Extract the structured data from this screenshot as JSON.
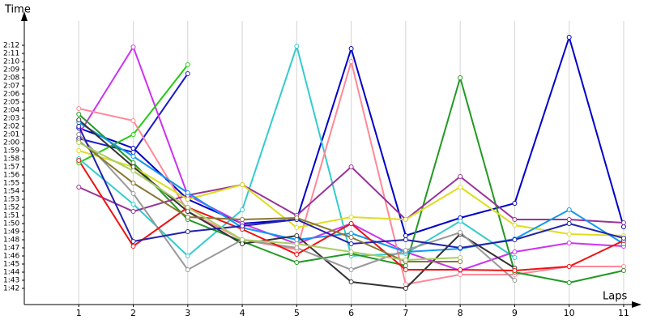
{
  "chart_data": {
    "type": "line",
    "x_label": "Laps",
    "y_label": "Time",
    "xlim": [
      0,
      11.2
    ],
    "ylim": [
      100,
      135
    ],
    "xticks": [
      1,
      2,
      3,
      4,
      5,
      6,
      7,
      8,
      9,
      10,
      11
    ],
    "yticks": [
      {
        "value": 102,
        "label": "1:42"
      },
      {
        "value": 103,
        "label": "1:43"
      },
      {
        "value": 104,
        "label": "1:44"
      },
      {
        "value": 105,
        "label": "1:45"
      },
      {
        "value": 106,
        "label": "1:46"
      },
      {
        "value": 107,
        "label": "1:47"
      },
      {
        "value": 108,
        "label": "1:48"
      },
      {
        "value": 109,
        "label": "1:49"
      },
      {
        "value": 110,
        "label": "1:50"
      },
      {
        "value": 111,
        "label": "1:51"
      },
      {
        "value": 112,
        "label": "1:52"
      },
      {
        "value": 113,
        "label": "1:53"
      },
      {
        "value": 114,
        "label": "1:54"
      },
      {
        "value": 115,
        "label": "1:55"
      },
      {
        "value": 116,
        "label": "1:56"
      },
      {
        "value": 117,
        "label": "1:57"
      },
      {
        "value": 118,
        "label": "1:58"
      },
      {
        "value": 119,
        "label": "1:59"
      },
      {
        "value": 120,
        "label": "2:00"
      },
      {
        "value": 121,
        "label": "2:01"
      },
      {
        "value": 122,
        "label": "2:02"
      },
      {
        "value": 123,
        "label": "2:03"
      },
      {
        "value": 124,
        "label": "2:04"
      },
      {
        "value": 125,
        "label": "2:05"
      },
      {
        "value": 126,
        "label": "2:06"
      },
      {
        "value": 127,
        "label": "2:07"
      },
      {
        "value": 128,
        "label": "2:08"
      },
      {
        "value": 129,
        "label": "2:09"
      },
      {
        "value": 130,
        "label": "2:10"
      },
      {
        "value": 131,
        "label": "2:11"
      },
      {
        "value": 132,
        "label": "2:12"
      }
    ],
    "grid": "x",
    "x": [
      1,
      2,
      3,
      4,
      5,
      6,
      7,
      8,
      9,
      10,
      11
    ],
    "series": [
      {
        "color": "#0000c8",
        "values": [
          121.8,
          119.3,
          113,
          110,
          110.5,
          131.6,
          108.5,
          110.7,
          112.5,
          133,
          109.6
        ]
      },
      {
        "color": "#1a1ad0",
        "values": [
          120.5,
          118.8,
          128.5,
          null,
          null,
          null,
          null,
          null,
          null,
          null,
          null
        ]
      },
      {
        "color": "#cc33ee",
        "values": [
          121,
          131.8,
          113.5,
          110,
          107.5,
          110,
          106.5,
          104.2,
          106.5,
          107.6,
          107.2
        ]
      },
      {
        "color": "#22cc11",
        "values": [
          117.5,
          121,
          129.6,
          null,
          null,
          null,
          null,
          null,
          null,
          null,
          null
        ]
      },
      {
        "color": "#33cccc",
        "values": [
          118,
          112.4,
          106,
          111.7,
          131.9,
          106,
          106.3,
          110.3,
          105.8,
          null,
          null
        ]
      },
      {
        "color": "#ff8899",
        "values": [
          124.2,
          122.7,
          111.5,
          108,
          106.8,
          130,
          102.5,
          103.7,
          103.7,
          104.7,
          104.7
        ]
      },
      {
        "color": "#229922",
        "values": [
          123.5,
          117.5,
          110.5,
          107.8,
          105.2,
          106.3,
          104.8,
          128,
          104,
          102.7,
          104.2
        ]
      },
      {
        "color": "#993399",
        "values": [
          114.5,
          111.5,
          113.5,
          114.8,
          111,
          117,
          110.5,
          115.8,
          110.5,
          110.5,
          110.1
        ]
      },
      {
        "color": "#dddd22",
        "values": [
          119,
          117,
          113,
          114.8,
          109.5,
          110.8,
          110.5,
          114.5,
          109.8,
          108.7,
          108.5
        ]
      },
      {
        "color": "#1199ee",
        "values": [
          122.5,
          118.3,
          113.8,
          109.5,
          108,
          108.8,
          106.5,
          106.9,
          108.1,
          111.7,
          107.5
        ]
      },
      {
        "color": "#333333",
        "values": [
          122.8,
          117,
          111.5,
          107.5,
          108.5,
          102.8,
          102,
          108.7,
          104.5,
          null,
          null
        ]
      },
      {
        "color": "#999999",
        "values": [
          121,
          113.7,
          104.3,
          108,
          107,
          104.3,
          106.7,
          108.9,
          103,
          null,
          null
        ]
      },
      {
        "color": "#ee1111",
        "values": [
          117.8,
          107.2,
          112,
          109.3,
          106.2,
          110,
          104.3,
          104.3,
          104.2,
          104.7,
          107.9
        ]
      },
      {
        "color": "#2222aa",
        "values": [
          122,
          107.8,
          109,
          109.7,
          110.5,
          107.5,
          108,
          107,
          108,
          110,
          108.2
        ]
      },
      {
        "color": "#887733",
        "values": [
          120.2,
          115,
          110.8,
          110.5,
          110.7,
          108.3,
          105.3,
          105.3,
          null,
          null,
          null
        ]
      },
      {
        "color": "#aacc66",
        "values": [
          120,
          116.5,
          112,
          108,
          107.5,
          106.5,
          105.5,
          105.8,
          null,
          null,
          null
        ]
      }
    ]
  }
}
